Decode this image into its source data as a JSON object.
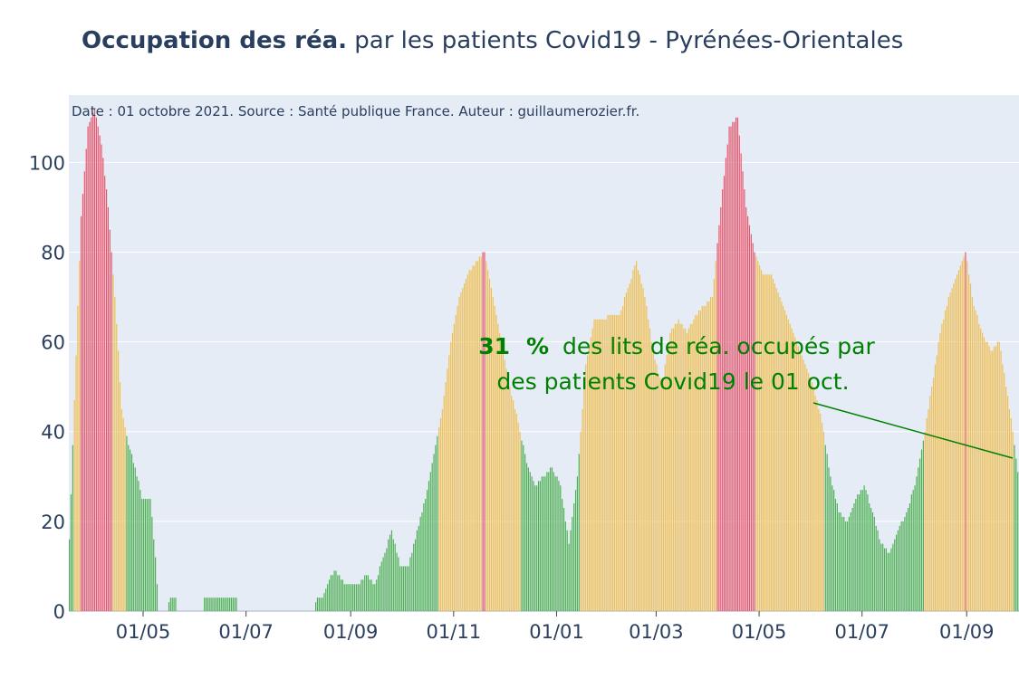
{
  "title": {
    "bold": "Occupation des réa.",
    "rest": "par les patients Covid19 - Pyrénées-Orientales"
  },
  "note": "Date : 01 octobre 2021. Source : Santé publique France. Auteur : guillaumerozier.fr.",
  "annotation": {
    "value": "31",
    "unit": "%",
    "line1_rest": "des lits de réa. occupés par",
    "line2": "des patients Covid19 le 01 oct."
  },
  "colors": {
    "green": "#4caf50",
    "orange": "#f0be50",
    "red": "#e8536a",
    "plot_bg": "#e5ecf6",
    "grid": "#ffffff",
    "text": "#2a3f5f",
    "annotation": "#008000"
  },
  "chart_data": {
    "type": "bar",
    "title": "Occupation des réa. par les patients Covid19 - Pyrénées-Orientales",
    "xlabel": "",
    "ylabel": "",
    "ylim": [
      0,
      115
    ],
    "yticks": [
      0,
      20,
      40,
      60,
      80,
      100
    ],
    "x_range": [
      "2020-03-18",
      "2021-10-01"
    ],
    "xticks": [
      {
        "date": "2020-05-01",
        "label": "01/05"
      },
      {
        "date": "2020-07-01",
        "label": "01/07"
      },
      {
        "date": "2020-09-01",
        "label": "01/09"
      },
      {
        "date": "2020-11-01",
        "label": "01/11"
      },
      {
        "date": "2021-01-01",
        "label": "01/01"
      },
      {
        "date": "2021-03-01",
        "label": "01/03"
      },
      {
        "date": "2021-05-01",
        "label": "01/05"
      },
      {
        "date": "2021-07-01",
        "label": "01/07"
      },
      {
        "date": "2021-09-01",
        "label": "01/09"
      }
    ],
    "color_thresholds": {
      "green_below": 40,
      "orange_below": 80,
      "red_from": 80
    },
    "bar_color_note": "bars colored by occupancy level: green, orange, red",
    "last_value": {
      "date": "2021-10-01",
      "value": 31
    },
    "series": [
      {
        "values_keypoints": [
          [
            "2020-03-18",
            16
          ],
          [
            "2020-03-21",
            47
          ],
          [
            "2020-03-25",
            88
          ],
          [
            "2020-03-29",
            108
          ],
          [
            "2020-04-02",
            112
          ],
          [
            "2020-04-06",
            104
          ],
          [
            "2020-04-10",
            90
          ],
          [
            "2020-04-14",
            70
          ],
          [
            "2020-04-18",
            45
          ],
          [
            "2020-04-22",
            37
          ],
          [
            "2020-04-26",
            32
          ],
          [
            "2020-04-30",
            25
          ],
          [
            "2020-05-05",
            25
          ],
          [
            "2020-05-08",
            12
          ],
          [
            "2020-05-10",
            0
          ],
          [
            "2020-05-15",
            0
          ],
          [
            "2020-05-17",
            3
          ],
          [
            "2020-05-20",
            3
          ],
          [
            "2020-05-21",
            0
          ],
          [
            "2020-06-05",
            0
          ],
          [
            "2020-06-06",
            3
          ],
          [
            "2020-06-25",
            3
          ],
          [
            "2020-06-26",
            0
          ],
          [
            "2020-08-10",
            0
          ],
          [
            "2020-08-12",
            3
          ],
          [
            "2020-08-15",
            3
          ],
          [
            "2020-08-18",
            6
          ],
          [
            "2020-08-22",
            9
          ],
          [
            "2020-08-28",
            6
          ],
          [
            "2020-09-05",
            6
          ],
          [
            "2020-09-10",
            8
          ],
          [
            "2020-09-15",
            6
          ],
          [
            "2020-09-20",
            12
          ],
          [
            "2020-09-25",
            18
          ],
          [
            "2020-09-30",
            10
          ],
          [
            "2020-10-05",
            10
          ],
          [
            "2020-10-10",
            18
          ],
          [
            "2020-10-15",
            25
          ],
          [
            "2020-10-20",
            35
          ],
          [
            "2020-10-25",
            45
          ],
          [
            "2020-10-30",
            60
          ],
          [
            "2020-11-04",
            70
          ],
          [
            "2020-11-09",
            75
          ],
          [
            "2020-11-14",
            78
          ],
          [
            "2020-11-19",
            80
          ],
          [
            "2020-11-24",
            70
          ],
          [
            "2020-11-29",
            60
          ],
          [
            "2020-12-04",
            50
          ],
          [
            "2020-12-09",
            42
          ],
          [
            "2020-12-14",
            33
          ],
          [
            "2020-12-19",
            28
          ],
          [
            "2020-12-24",
            30
          ],
          [
            "2020-12-29",
            32
          ],
          [
            "2021-01-03",
            28
          ],
          [
            "2021-01-08",
            15
          ],
          [
            "2021-01-13",
            30
          ],
          [
            "2021-01-18",
            55
          ],
          [
            "2021-01-23",
            65
          ],
          [
            "2021-01-28",
            65
          ],
          [
            "2021-02-02",
            66
          ],
          [
            "2021-02-07",
            66
          ],
          [
            "2021-02-12",
            72
          ],
          [
            "2021-02-17",
            78
          ],
          [
            "2021-02-22",
            70
          ],
          [
            "2021-02-27",
            58
          ],
          [
            "2021-03-04",
            50
          ],
          [
            "2021-03-09",
            62
          ],
          [
            "2021-03-14",
            65
          ],
          [
            "2021-03-19",
            62
          ],
          [
            "2021-03-24",
            66
          ],
          [
            "2021-03-29",
            68
          ],
          [
            "2021-04-03",
            70
          ],
          [
            "2021-04-08",
            90
          ],
          [
            "2021-04-13",
            108
          ],
          [
            "2021-04-18",
            110
          ],
          [
            "2021-04-23",
            90
          ],
          [
            "2021-04-28",
            80
          ],
          [
            "2021-05-03",
            75
          ],
          [
            "2021-05-08",
            75
          ],
          [
            "2021-05-13",
            70
          ],
          [
            "2021-05-18",
            65
          ],
          [
            "2021-05-23",
            60
          ],
          [
            "2021-05-28",
            55
          ],
          [
            "2021-06-02",
            50
          ],
          [
            "2021-06-07",
            42
          ],
          [
            "2021-06-12",
            30
          ],
          [
            "2021-06-17",
            22
          ],
          [
            "2021-06-22",
            20
          ],
          [
            "2021-06-27",
            25
          ],
          [
            "2021-07-02",
            28
          ],
          [
            "2021-07-07",
            22
          ],
          [
            "2021-07-12",
            15
          ],
          [
            "2021-07-17",
            13
          ],
          [
            "2021-07-22",
            18
          ],
          [
            "2021-07-27",
            22
          ],
          [
            "2021-08-01",
            28
          ],
          [
            "2021-08-06",
            38
          ],
          [
            "2021-08-11",
            50
          ],
          [
            "2021-08-16",
            62
          ],
          [
            "2021-08-21",
            70
          ],
          [
            "2021-08-26",
            75
          ],
          [
            "2021-08-31",
            80
          ],
          [
            "2021-09-05",
            68
          ],
          [
            "2021-09-10",
            62
          ],
          [
            "2021-09-15",
            58
          ],
          [
            "2021-09-20",
            60
          ],
          [
            "2021-09-25",
            48
          ],
          [
            "2021-09-28",
            40
          ],
          [
            "2021-10-01",
            31
          ]
        ]
      }
    ]
  }
}
